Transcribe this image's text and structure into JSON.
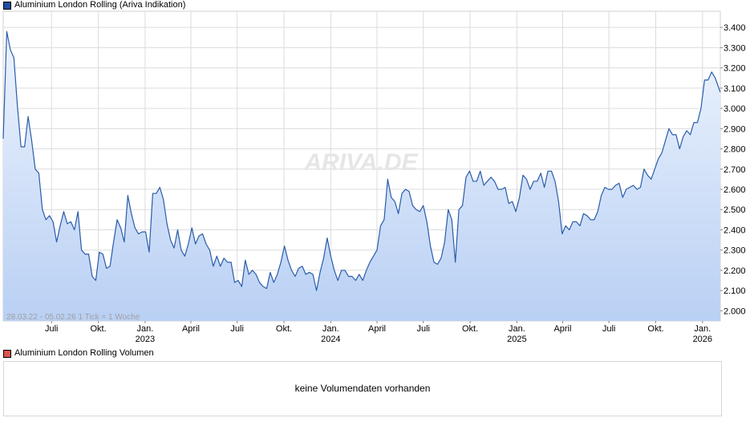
{
  "legend_price": {
    "label": "Aluminium London Rolling (Ariva Indikation)",
    "color": "#1f4ea0"
  },
  "legend_volume": {
    "label": "Aluminium London Rolling Volumen",
    "color": "#d9534f"
  },
  "watermark": "ARIVA.DE",
  "info_text": "28.03.22 - 05.02.26   1 Tick = 1 Woche",
  "volume_panel": {
    "message": "keine Volumendaten vorhanden"
  },
  "colors": {
    "line": "#2a5caa",
    "fill_top": "#eef4fd",
    "fill_bottom": "#b9d0f4",
    "grid": "#dcdcdc"
  },
  "chart_data": {
    "type": "area",
    "title": "Aluminium London Rolling (Ariva Indikation)",
    "xlabel": "",
    "ylabel": "",
    "date_range": [
      "2022-03-28",
      "2026-02-05"
    ],
    "ylim": [
      1950,
      3480
    ],
    "grid": true,
    "y_ticks": [
      2000,
      2100,
      2200,
      2300,
      2400,
      2500,
      2600,
      2700,
      2800,
      2900,
      3000,
      3100,
      3200,
      3300,
      3400
    ],
    "y_tick_labels": [
      "2.000",
      "2.100",
      "2.200",
      "2.300",
      "2.400",
      "2.500",
      "2.600",
      "2.700",
      "2.800",
      "2.900",
      "3.000",
      "3.100",
      "3.200",
      "3.300",
      "3.400"
    ],
    "x_ticks": [
      {
        "date": "2022-07-01",
        "label": "Juli",
        "year": ""
      },
      {
        "date": "2022-10-01",
        "label": "Okt.",
        "year": ""
      },
      {
        "date": "2023-01-01",
        "label": "Jan.",
        "year": "2023"
      },
      {
        "date": "2023-04-01",
        "label": "April",
        "year": ""
      },
      {
        "date": "2023-07-01",
        "label": "Juli",
        "year": ""
      },
      {
        "date": "2023-10-01",
        "label": "Okt.",
        "year": ""
      },
      {
        "date": "2024-01-01",
        "label": "Jan.",
        "year": "2024"
      },
      {
        "date": "2024-04-01",
        "label": "April",
        "year": ""
      },
      {
        "date": "2024-07-01",
        "label": "Juli",
        "year": ""
      },
      {
        "date": "2024-10-01",
        "label": "Okt.",
        "year": ""
      },
      {
        "date": "2025-01-01",
        "label": "Jan.",
        "year": "2025"
      },
      {
        "date": "2025-04-01",
        "label": "April",
        "year": ""
      },
      {
        "date": "2025-07-01",
        "label": "Juli",
        "year": ""
      },
      {
        "date": "2025-10-01",
        "label": "Okt.",
        "year": ""
      },
      {
        "date": "2026-01-01",
        "label": "Jan.",
        "year": "2026"
      }
    ],
    "series": [
      {
        "name": "Aluminium London Rolling",
        "points": [
          [
            "2022-03-28",
            2850
          ],
          [
            "2022-04-04",
            3380
          ],
          [
            "2022-04-11",
            3290
          ],
          [
            "2022-04-18",
            3250
          ],
          [
            "2022-04-25",
            3010
          ],
          [
            "2022-05-02",
            2810
          ],
          [
            "2022-05-09",
            2810
          ],
          [
            "2022-05-16",
            2960
          ],
          [
            "2022-05-23",
            2840
          ],
          [
            "2022-05-30",
            2700
          ],
          [
            "2022-06-06",
            2680
          ],
          [
            "2022-06-13",
            2500
          ],
          [
            "2022-06-20",
            2450
          ],
          [
            "2022-06-27",
            2470
          ],
          [
            "2022-07-04",
            2440
          ],
          [
            "2022-07-11",
            2340
          ],
          [
            "2022-07-18",
            2420
          ],
          [
            "2022-07-25",
            2490
          ],
          [
            "2022-08-01",
            2430
          ],
          [
            "2022-08-08",
            2440
          ],
          [
            "2022-08-15",
            2400
          ],
          [
            "2022-08-22",
            2490
          ],
          [
            "2022-08-29",
            2300
          ],
          [
            "2022-09-05",
            2280
          ],
          [
            "2022-09-12",
            2280
          ],
          [
            "2022-09-19",
            2170
          ],
          [
            "2022-09-26",
            2150
          ],
          [
            "2022-10-03",
            2290
          ],
          [
            "2022-10-10",
            2280
          ],
          [
            "2022-10-17",
            2210
          ],
          [
            "2022-10-24",
            2220
          ],
          [
            "2022-10-31",
            2340
          ],
          [
            "2022-11-07",
            2450
          ],
          [
            "2022-11-14",
            2410
          ],
          [
            "2022-11-21",
            2340
          ],
          [
            "2022-11-28",
            2570
          ],
          [
            "2022-12-05",
            2480
          ],
          [
            "2022-12-12",
            2410
          ],
          [
            "2022-12-19",
            2380
          ],
          [
            "2022-12-26",
            2390
          ],
          [
            "2023-01-02",
            2390
          ],
          [
            "2023-01-09",
            2290
          ],
          [
            "2023-01-16",
            2580
          ],
          [
            "2023-01-23",
            2580
          ],
          [
            "2023-01-30",
            2610
          ],
          [
            "2023-02-06",
            2550
          ],
          [
            "2023-02-13",
            2430
          ],
          [
            "2023-02-20",
            2350
          ],
          [
            "2023-02-27",
            2310
          ],
          [
            "2023-03-06",
            2400
          ],
          [
            "2023-03-13",
            2300
          ],
          [
            "2023-03-20",
            2270
          ],
          [
            "2023-03-27",
            2330
          ],
          [
            "2023-04-03",
            2410
          ],
          [
            "2023-04-10",
            2330
          ],
          [
            "2023-04-17",
            2370
          ],
          [
            "2023-04-24",
            2380
          ],
          [
            "2023-05-01",
            2330
          ],
          [
            "2023-05-08",
            2300
          ],
          [
            "2023-05-15",
            2220
          ],
          [
            "2023-05-22",
            2270
          ],
          [
            "2023-05-29",
            2220
          ],
          [
            "2023-06-05",
            2260
          ],
          [
            "2023-06-12",
            2240
          ],
          [
            "2023-06-19",
            2240
          ],
          [
            "2023-06-26",
            2140
          ],
          [
            "2023-07-03",
            2150
          ],
          [
            "2023-07-10",
            2120
          ],
          [
            "2023-07-17",
            2250
          ],
          [
            "2023-07-24",
            2180
          ],
          [
            "2023-07-31",
            2200
          ],
          [
            "2023-08-07",
            2180
          ],
          [
            "2023-08-14",
            2140
          ],
          [
            "2023-08-21",
            2120
          ],
          [
            "2023-08-28",
            2110
          ],
          [
            "2023-09-04",
            2190
          ],
          [
            "2023-09-11",
            2140
          ],
          [
            "2023-09-18",
            2180
          ],
          [
            "2023-09-25",
            2240
          ],
          [
            "2023-10-02",
            2320
          ],
          [
            "2023-10-09",
            2250
          ],
          [
            "2023-10-16",
            2200
          ],
          [
            "2023-10-23",
            2170
          ],
          [
            "2023-10-30",
            2210
          ],
          [
            "2023-11-06",
            2220
          ],
          [
            "2023-11-13",
            2180
          ],
          [
            "2023-11-20",
            2190
          ],
          [
            "2023-11-27",
            2180
          ],
          [
            "2023-12-04",
            2100
          ],
          [
            "2023-12-11",
            2190
          ],
          [
            "2023-12-18",
            2260
          ],
          [
            "2023-12-25",
            2360
          ],
          [
            "2024-01-01",
            2270
          ],
          [
            "2024-01-08",
            2200
          ],
          [
            "2024-01-15",
            2150
          ],
          [
            "2024-01-22",
            2200
          ],
          [
            "2024-01-29",
            2200
          ],
          [
            "2024-02-05",
            2170
          ],
          [
            "2024-02-12",
            2170
          ],
          [
            "2024-02-19",
            2150
          ],
          [
            "2024-02-26",
            2180
          ],
          [
            "2024-03-04",
            2150
          ],
          [
            "2024-03-11",
            2200
          ],
          [
            "2024-03-18",
            2240
          ],
          [
            "2024-03-25",
            2270
          ],
          [
            "2024-04-01",
            2300
          ],
          [
            "2024-04-08",
            2420
          ],
          [
            "2024-04-15",
            2450
          ],
          [
            "2024-04-22",
            2650
          ],
          [
            "2024-04-29",
            2560
          ],
          [
            "2024-05-06",
            2540
          ],
          [
            "2024-05-13",
            2480
          ],
          [
            "2024-05-20",
            2580
          ],
          [
            "2024-05-27",
            2600
          ],
          [
            "2024-06-03",
            2590
          ],
          [
            "2024-06-10",
            2520
          ],
          [
            "2024-06-17",
            2500
          ],
          [
            "2024-06-24",
            2490
          ],
          [
            "2024-07-01",
            2520
          ],
          [
            "2024-07-08",
            2440
          ],
          [
            "2024-07-15",
            2320
          ],
          [
            "2024-07-22",
            2240
          ],
          [
            "2024-07-29",
            2230
          ],
          [
            "2024-08-05",
            2260
          ],
          [
            "2024-08-12",
            2340
          ],
          [
            "2024-08-19",
            2500
          ],
          [
            "2024-08-26",
            2450
          ],
          [
            "2024-09-02",
            2240
          ],
          [
            "2024-09-09",
            2500
          ],
          [
            "2024-09-16",
            2520
          ],
          [
            "2024-09-23",
            2660
          ],
          [
            "2024-09-30",
            2690
          ],
          [
            "2024-10-07",
            2640
          ],
          [
            "2024-10-14",
            2640
          ],
          [
            "2024-10-21",
            2690
          ],
          [
            "2024-10-28",
            2620
          ],
          [
            "2024-11-04",
            2640
          ],
          [
            "2024-11-11",
            2660
          ],
          [
            "2024-11-18",
            2640
          ],
          [
            "2024-11-25",
            2600
          ],
          [
            "2024-12-02",
            2600
          ],
          [
            "2024-12-09",
            2610
          ],
          [
            "2024-12-16",
            2530
          ],
          [
            "2024-12-23",
            2540
          ],
          [
            "2024-12-30",
            2490
          ],
          [
            "2025-01-06",
            2560
          ],
          [
            "2025-01-13",
            2670
          ],
          [
            "2025-01-20",
            2650
          ],
          [
            "2025-01-27",
            2600
          ],
          [
            "2025-02-03",
            2640
          ],
          [
            "2025-02-10",
            2640
          ],
          [
            "2025-02-17",
            2680
          ],
          [
            "2025-02-24",
            2610
          ],
          [
            "2025-03-03",
            2690
          ],
          [
            "2025-03-10",
            2690
          ],
          [
            "2025-03-17",
            2640
          ],
          [
            "2025-03-24",
            2540
          ],
          [
            "2025-03-31",
            2380
          ],
          [
            "2025-04-07",
            2420
          ],
          [
            "2025-04-14",
            2400
          ],
          [
            "2025-04-21",
            2440
          ],
          [
            "2025-04-28",
            2440
          ],
          [
            "2025-05-05",
            2420
          ],
          [
            "2025-05-12",
            2480
          ],
          [
            "2025-05-19",
            2470
          ],
          [
            "2025-05-26",
            2450
          ],
          [
            "2025-06-02",
            2450
          ],
          [
            "2025-06-09",
            2490
          ],
          [
            "2025-06-16",
            2570
          ],
          [
            "2025-06-23",
            2610
          ],
          [
            "2025-06-30",
            2600
          ],
          [
            "2025-07-07",
            2600
          ],
          [
            "2025-07-14",
            2620
          ],
          [
            "2025-07-21",
            2630
          ],
          [
            "2025-07-28",
            2560
          ],
          [
            "2025-08-04",
            2600
          ],
          [
            "2025-08-11",
            2610
          ],
          [
            "2025-08-18",
            2620
          ],
          [
            "2025-08-25",
            2600
          ],
          [
            "2025-09-01",
            2610
          ],
          [
            "2025-09-08",
            2700
          ],
          [
            "2025-09-15",
            2670
          ],
          [
            "2025-09-22",
            2650
          ],
          [
            "2025-09-29",
            2700
          ],
          [
            "2025-10-06",
            2750
          ],
          [
            "2025-10-13",
            2780
          ],
          [
            "2025-10-20",
            2840
          ],
          [
            "2025-10-27",
            2900
          ],
          [
            "2025-11-03",
            2870
          ],
          [
            "2025-11-10",
            2870
          ],
          [
            "2025-11-17",
            2800
          ],
          [
            "2025-11-24",
            2860
          ],
          [
            "2025-12-01",
            2890
          ],
          [
            "2025-12-08",
            2870
          ],
          [
            "2025-12-15",
            2930
          ],
          [
            "2025-12-22",
            2930
          ],
          [
            "2025-12-29",
            3000
          ],
          [
            "2026-01-05",
            3140
          ],
          [
            "2026-01-12",
            3140
          ],
          [
            "2026-01-19",
            3180
          ],
          [
            "2026-01-26",
            3150
          ],
          [
            "2026-02-05",
            3080
          ]
        ]
      }
    ]
  }
}
